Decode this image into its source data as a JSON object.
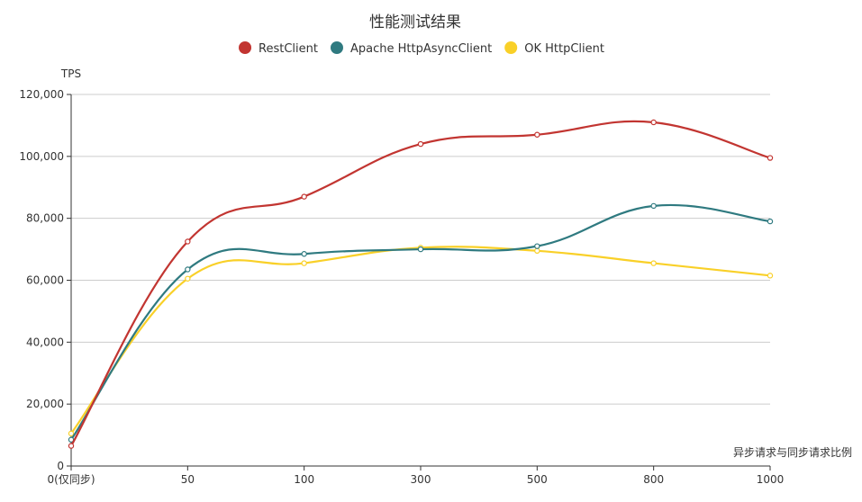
{
  "chart_data": {
    "type": "line",
    "smooth": true,
    "title": "性能测试结果",
    "ylabel": "TPS",
    "xlabel": "异步请求与同步请求比例",
    "categories": [
      "0(仅同步)",
      "50",
      "100",
      "300",
      "500",
      "800",
      "1000"
    ],
    "ylim": [
      0,
      120000
    ],
    "ytick_step": 20000,
    "ytick_labels": [
      "0",
      "20,000",
      "40,000",
      "60,000",
      "80,000",
      "100,000",
      "120,000"
    ],
    "grid": true,
    "legend_position": "top-center",
    "series": [
      {
        "name": "RestClient",
        "color": "#c23531",
        "values": [
          6500,
          72500,
          87000,
          104000,
          107000,
          111000,
          99500
        ]
      },
      {
        "name": "Apache HttpAsyncClient",
        "color": "#2f7a80",
        "values": [
          8500,
          63500,
          68500,
          70000,
          71000,
          84000,
          79000
        ]
      },
      {
        "name": "OK HttpClient",
        "color": "#f9d028",
        "values": [
          10500,
          60500,
          65500,
          70500,
          69500,
          65500,
          61500
        ]
      }
    ]
  }
}
